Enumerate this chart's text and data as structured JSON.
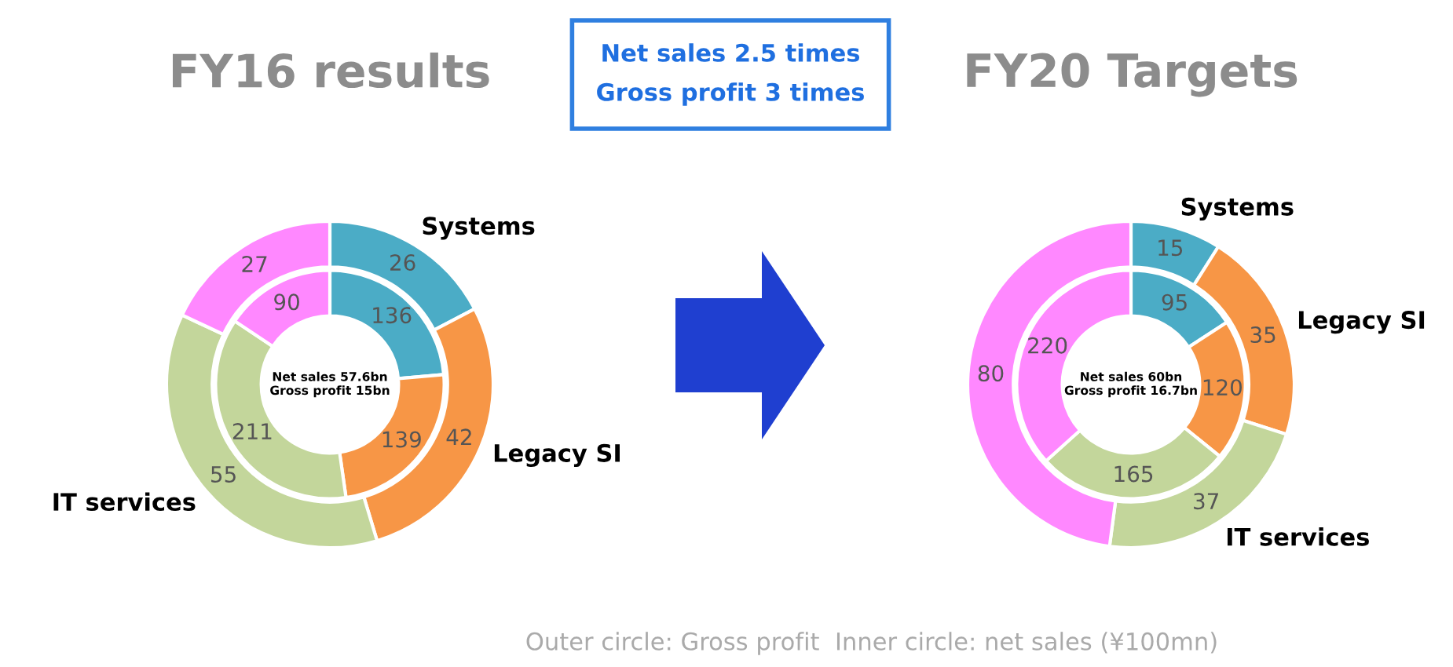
{
  "chart_data": [
    {
      "type": "donut",
      "title": "FY16 results",
      "categories": [
        "Systems",
        "Legacy SI",
        "IT services",
        null
      ],
      "colors": [
        "#4bacc6",
        "#f79646",
        "#c3d69b",
        "#ff88ff"
      ],
      "data_labels": true,
      "series": [
        {
          "values": [
            26,
            42,
            55,
            27
          ]
        },
        {
          "values": [
            136,
            139,
            211,
            90
          ]
        }
      ],
      "annotations": [
        "Net sales 57.6bn\nGross profit 15bn"
      ]
    },
    {
      "type": "other",
      "annotations": [
        "Net sales 2.5 times",
        "Gross profit 3 times"
      ]
    },
    {
      "type": "donut",
      "title": "FY20 Targets",
      "categories": [
        "Systems",
        "Legacy SI",
        "IT services",
        null
      ],
      "colors": [
        "#4bacc6",
        "#f79646",
        "#c3d69b",
        "#ff88ff"
      ],
      "data_labels": true,
      "series": [
        {
          "values": [
            15,
            35,
            37,
            80
          ]
        },
        {
          "values": [
            95,
            120,
            165,
            220
          ]
        }
      ],
      "annotations": [
        "Net sales 60bn\nGross profit 16.7bn",
        "Outer circle: Gross profit  Inner circle: net sales (¥100mn)"
      ]
    }
  ]
}
